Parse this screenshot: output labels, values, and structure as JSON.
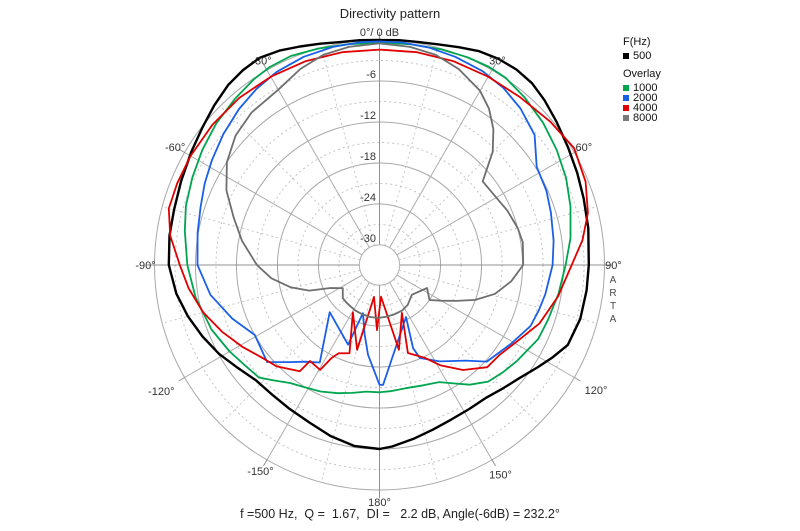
{
  "title": "Directivity pattern",
  "status_line": "f =500 Hz,  Q =  1.67,  DI =   2.2 dB, Angle(-6dB) = 232.2°",
  "watermark": "ARTA",
  "legend": {
    "freq_header": "F(Hz)",
    "overlay_header": "Overlay",
    "freq_items": [
      {
        "label": "500",
        "color": "#000000"
      }
    ],
    "overlay_items": [
      {
        "label": "1000",
        "color": "#00a550"
      },
      {
        "label": "2000",
        "color": "#1a5fe8"
      },
      {
        "label": "4000",
        "color": "#e00000"
      },
      {
        "label": "8000",
        "color": "#7a7a7a"
      }
    ]
  },
  "chart_data": {
    "type": "polar-line",
    "title": "Directivity pattern",
    "angle_unit": "deg",
    "r_axis": {
      "min": -30,
      "max": 0,
      "step_solid": 6,
      "step_dashed": 3,
      "unit": "dB"
    },
    "angle_grid": {
      "solid_every": 30,
      "dashed_every": 15
    },
    "zero_label": "0°/ 0 dB",
    "db_tick_labels": [
      {
        "db": -6,
        "label": "-6"
      },
      {
        "db": -12,
        "label": "-12"
      },
      {
        "db": -18,
        "label": "-18"
      },
      {
        "db": -24,
        "label": "-24"
      },
      {
        "db": -30,
        "label": "-30"
      }
    ],
    "angle_labels": [
      {
        "angle": -30,
        "label": "-30°",
        "r": 236
      },
      {
        "angle": -60,
        "label": "-60°",
        "r": 236
      },
      {
        "angle": -90,
        "label": "-90°",
        "r": 234
      },
      {
        "angle": -120,
        "label": "-120°",
        "r": 252
      },
      {
        "angle": -150,
        "label": "-150°",
        "r": 238
      },
      {
        "angle": 30,
        "label": "30°",
        "r": 236
      },
      {
        "angle": 60,
        "label": "60°",
        "r": 236
      },
      {
        "angle": 90,
        "label": "90°",
        "r": 234
      },
      {
        "angle": 120,
        "label": "120°",
        "r": 250
      },
      {
        "angle": 150,
        "label": "150°",
        "r": 242
      },
      {
        "angle": 180,
        "label": "180°",
        "r": 237
      }
    ],
    "series": [
      {
        "name": "500",
        "color": "#000000",
        "width": 2.4,
        "points": [
          [
            -180,
            -6.0
          ],
          [
            -172,
            -6.2
          ],
          [
            -164,
            -6.9
          ],
          [
            -156,
            -7.7
          ],
          [
            -148,
            -8.1
          ],
          [
            -140,
            -8.3
          ],
          [
            -133,
            -8.2
          ],
          [
            -126,
            -7.3
          ],
          [
            -119,
            -6.1
          ],
          [
            -112,
            -5.0
          ],
          [
            -105,
            -3.9
          ],
          [
            -98,
            -2.9
          ],
          [
            -90,
            -2.1
          ],
          [
            -82,
            -1.9
          ],
          [
            -75,
            -1.8
          ],
          [
            -67,
            -1.4
          ],
          [
            -59,
            -0.8
          ],
          [
            -52,
            -0.1
          ],
          [
            -46,
            0.7
          ],
          [
            -40,
            1.5
          ],
          [
            -35,
            1.9
          ],
          [
            -30,
            2.1
          ],
          [
            -25,
            1.7
          ],
          [
            -20,
            1.1
          ],
          [
            -15,
            0.6
          ],
          [
            -10,
            0.2
          ],
          [
            -5,
            0.1
          ],
          [
            0,
            0.0
          ],
          [
            5,
            0.1
          ],
          [
            10,
            0.2
          ],
          [
            15,
            0.5
          ],
          [
            20,
            1.0
          ],
          [
            25,
            1.6
          ],
          [
            30,
            1.9
          ],
          [
            35,
            2.0
          ],
          [
            40,
            1.8
          ],
          [
            45,
            1.2
          ],
          [
            51,
            0.4
          ],
          [
            58,
            -0.4
          ],
          [
            65,
            -1.0
          ],
          [
            72,
            -1.5
          ],
          [
            80,
            -1.9
          ],
          [
            90,
            -2.3
          ],
          [
            97,
            -2.4
          ],
          [
            105,
            -2.5
          ],
          [
            113,
            -3.0
          ],
          [
            118,
            -4.2
          ],
          [
            123,
            -5.4
          ],
          [
            129,
            -6.6
          ],
          [
            135,
            -7.4
          ],
          [
            141,
            -8.0
          ],
          [
            148,
            -8.1
          ],
          [
            155,
            -8.0
          ],
          [
            162,
            -7.6
          ],
          [
            169,
            -7.0
          ],
          [
            176,
            -6.3
          ],
          [
            180,
            -6.0
          ]
        ]
      },
      {
        "name": "1000",
        "color": "#00a550",
        "width": 1.8,
        "points": [
          [
            -180,
            -14.3
          ],
          [
            -174,
            -14.3
          ],
          [
            -168,
            -13.8
          ],
          [
            -162,
            -13.2
          ],
          [
            -155,
            -12.5
          ],
          [
            -148,
            -11.9
          ],
          [
            -143,
            -11.3
          ],
          [
            -137,
            -9.9
          ],
          [
            -133,
            -8.8
          ],
          [
            -127,
            -8.4
          ],
          [
            -120,
            -7.6
          ],
          [
            -111,
            -6.6
          ],
          [
            -100,
            -5.6
          ],
          [
            -90,
            -4.8
          ],
          [
            -80,
            -4.0
          ],
          [
            -73,
            -3.3
          ],
          [
            -65,
            -2.7
          ],
          [
            -57,
            -2.0
          ],
          [
            -49,
            -1.3
          ],
          [
            -41,
            -0.7
          ],
          [
            -34,
            -0.1
          ],
          [
            -29,
            0.2
          ],
          [
            -23,
            0.3
          ],
          [
            -16,
            0.0
          ],
          [
            -8,
            -0.3
          ],
          [
            0,
            -0.4
          ],
          [
            8,
            -0.3
          ],
          [
            16,
            -0.1
          ],
          [
            23,
            0.1
          ],
          [
            29,
            0.2
          ],
          [
            34,
            0.1
          ],
          [
            41,
            -0.5
          ],
          [
            49,
            -1.2
          ],
          [
            57,
            -2.0
          ],
          [
            65,
            -2.8
          ],
          [
            73,
            -3.7
          ],
          [
            82,
            -4.7
          ],
          [
            90,
            -5.7
          ],
          [
            99,
            -6.4
          ],
          [
            108,
            -7.0
          ],
          [
            115,
            -7.3
          ],
          [
            125,
            -8.4
          ],
          [
            131,
            -9.0
          ],
          [
            137,
            -9.6
          ],
          [
            143,
            -11.0
          ],
          [
            148,
            -12.5
          ],
          [
            153,
            -13.7
          ],
          [
            160,
            -14.2
          ],
          [
            168,
            -14.5
          ],
          [
            175,
            -14.4
          ],
          [
            180,
            -14.3
          ]
        ]
      },
      {
        "name": "2000",
        "color": "#1a5fe8",
        "width": 1.8,
        "points": [
          [
            -180,
            -15.4
          ],
          [
            -172.7,
            -19.7
          ],
          [
            -168,
            -22.5
          ],
          [
            -161,
            -25.5
          ],
          [
            -158.5,
            -20.4
          ],
          [
            -133.5,
            -22.9
          ],
          [
            -148.5,
            -16.2
          ],
          [
            -142.5,
            -15.1
          ],
          [
            -137.3,
            -13.6
          ],
          [
            -130.8,
            -11.2
          ],
          [
            -119.3,
            -12.0
          ],
          [
            -110,
            -10.0
          ],
          [
            -100,
            -7.8
          ],
          [
            -90,
            -6.3
          ],
          [
            -80,
            -5.9
          ],
          [
            -72,
            -5.4
          ],
          [
            -65,
            -4.7
          ],
          [
            -58,
            -4.0
          ],
          [
            -50,
            -3.1
          ],
          [
            -42,
            -2.2
          ],
          [
            -35,
            -1.5
          ],
          [
            -28,
            -0.9
          ],
          [
            -20,
            -0.5
          ],
          [
            -12,
            -0.3
          ],
          [
            -5,
            -0.2
          ],
          [
            0,
            -0.2
          ],
          [
            6,
            -0.2
          ],
          [
            13,
            -0.3
          ],
          [
            20,
            -0.5
          ],
          [
            28,
            -0.8
          ],
          [
            35,
            -1.3
          ],
          [
            42,
            -2.1
          ],
          [
            50,
            -3.3
          ],
          [
            58,
            -5.8
          ],
          [
            66,
            -6.2
          ],
          [
            73,
            -6.7
          ],
          [
            82,
            -7.2
          ],
          [
            90,
            -7.6
          ],
          [
            100,
            -8.3
          ],
          [
            106,
            -8.7
          ],
          [
            112,
            -9.1
          ],
          [
            121,
            -10.5
          ],
          [
            132,
            -11.8
          ],
          [
            138,
            -14.1
          ],
          [
            148,
            -16.3
          ],
          [
            156.5,
            -18.1
          ],
          [
            158,
            -19.8
          ],
          [
            153,
            -24.4
          ],
          [
            178.3,
            -15.4
          ]
        ]
      },
      {
        "name": "4000",
        "color": "#e00000",
        "width": 1.8,
        "points": [
          [
            -177.8,
            -23.4
          ],
          [
            -170.2,
            -28.2
          ],
          [
            -165.2,
            -20.1
          ],
          [
            -150.6,
            -25.0
          ],
          [
            -161.2,
            -19.3
          ],
          [
            -155.2,
            -18.7
          ],
          [
            -152.7,
            -17.6
          ],
          [
            -150.5,
            -15.3
          ],
          [
            -144.1,
            -15.6
          ],
          [
            -143.1,
            -13.5
          ],
          [
            -134.6,
            -11.8
          ],
          [
            -128,
            -11.0
          ],
          [
            -121,
            -9.6
          ],
          [
            -113,
            -7.9
          ],
          [
            -105,
            -6.2
          ],
          [
            -97,
            -4.8
          ],
          [
            -90,
            -3.7
          ],
          [
            -82,
            -2.0
          ],
          [
            -75,
            -1.0
          ],
          [
            -68,
            -1.0
          ],
          [
            -60,
            -1.0
          ],
          [
            -50,
            -1.0
          ],
          [
            -40,
            -1.0
          ],
          [
            -30,
            -1.1
          ],
          [
            -20,
            -1.2
          ],
          [
            -10,
            -1.3
          ],
          [
            0,
            -1.4
          ],
          [
            10,
            -1.3
          ],
          [
            20,
            -1.2
          ],
          [
            30,
            -1.1
          ],
          [
            40,
            -0.9
          ],
          [
            50,
            -0.3
          ],
          [
            59,
            0.3
          ],
          [
            68,
            -0.4
          ],
          [
            76,
            -1.5
          ],
          [
            83,
            -3.0
          ],
          [
            90,
            -4.8
          ],
          [
            100,
            -6.4
          ],
          [
            110,
            -8.0
          ],
          [
            119,
            -9.9
          ],
          [
            127,
            -11.0
          ],
          [
            133.5,
            -11.2
          ],
          [
            141.5,
            -13.3
          ],
          [
            148.8,
            -15.8
          ],
          [
            153.9,
            -17.8
          ],
          [
            162.1,
            -19.4
          ],
          [
            154.9,
            -25.2
          ],
          [
            167.1,
            -20.2
          ],
          [
            177.3,
            -28.3
          ]
        ]
      },
      {
        "name": "8000",
        "color": "#6e6e6e",
        "width": 1.8,
        "points": [
          [
            -178.4,
            -25.2
          ],
          [
            -169.6,
            -25.2
          ],
          [
            -160.3,
            -25.3
          ],
          [
            -151.4,
            -25.4
          ],
          [
            -139.5,
            -25.6
          ],
          [
            -132.1,
            -25.7
          ],
          [
            -122.2,
            -26.6
          ],
          [
            -115.1,
            -25.0
          ],
          [
            -110,
            -22.0
          ],
          [
            -104,
            -19.5
          ],
          [
            -97,
            -17.0
          ],
          [
            -90,
            -15.0
          ],
          [
            -80,
            -12.5
          ],
          [
            -72,
            -10.5
          ],
          [
            -64,
            -8.0
          ],
          [
            -56,
            -6.0
          ],
          [
            -48,
            -4.6
          ],
          [
            -40,
            -3.8
          ],
          [
            -30,
            -3.3
          ],
          [
            -22,
            -2.0
          ],
          [
            -15,
            -1.1
          ],
          [
            -8,
            -0.7
          ],
          [
            0,
            -0.5
          ],
          [
            8,
            -0.7
          ],
          [
            15,
            -1.1
          ],
          [
            22,
            -2.0
          ],
          [
            30,
            -3.5
          ],
          [
            35,
            -5.0
          ],
          [
            40,
            -7.0
          ],
          [
            45,
            -9.5
          ],
          [
            51,
            -13.5
          ],
          [
            60,
            -13.2
          ],
          [
            67,
            -12.6
          ],
          [
            75,
            -12.0
          ],
          [
            81,
            -11.7
          ],
          [
            90,
            -11.9
          ],
          [
            97,
            -13.5
          ],
          [
            104,
            -15.5
          ],
          [
            110,
            -18.0
          ],
          [
            115,
            -20.5
          ],
          [
            120,
            -22.5
          ],
          [
            125,
            -24.0
          ],
          [
            115.8,
            -25.2
          ],
          [
            132.7,
            -26.5
          ],
          [
            144.5,
            -25.8
          ],
          [
            153.9,
            -25.5
          ],
          [
            163.8,
            -25.4
          ],
          [
            172.9,
            -25.3
          ]
        ]
      }
    ]
  }
}
